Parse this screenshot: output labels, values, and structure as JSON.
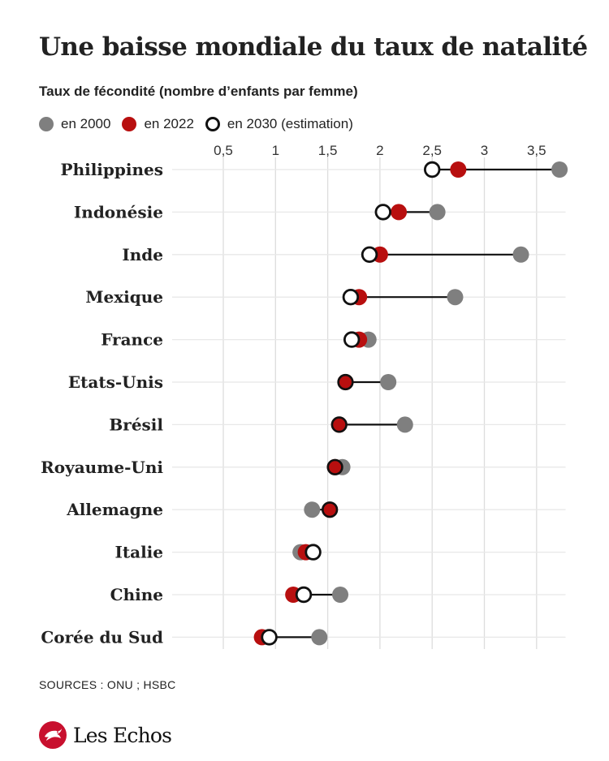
{
  "title": "Une baisse mondiale du taux de natalité",
  "subtitle": "Taux de fécondité (nombre d’enfants par femme)",
  "legend": [
    {
      "label": "en 2000",
      "style": "grey"
    },
    {
      "label": "en 2022",
      "style": "red"
    },
    {
      "label": "en 2030 (estimation)",
      "style": "open"
    }
  ],
  "colors": {
    "y2000": "#7f7f7f",
    "y2022": "#b80f0f",
    "y2030_stroke": "#111111",
    "line": "#111111",
    "grid": "#dddddd"
  },
  "sources": "SOURCES : ONU ; HSBC",
  "brand": "Les Echos",
  "chart_data": {
    "type": "dot-plot",
    "title": "Une baisse mondiale du taux de natalité",
    "xlabel": "Taux de fécondité (nombre d’enfants par femme)",
    "xlim": [
      0.5,
      3.7
    ],
    "ticks": [
      0.5,
      1,
      1.5,
      2,
      2.5,
      3,
      3.5
    ],
    "tick_labels": [
      "0,5",
      "1",
      "1,5",
      "2",
      "2,5",
      "3",
      "3,5"
    ],
    "countries": [
      {
        "name": "Philippines",
        "y2000": 3.72,
        "y2022": 2.75,
        "y2030": 2.5
      },
      {
        "name": "Indonésie",
        "y2000": 2.55,
        "y2022": 2.18,
        "y2030": 2.03
      },
      {
        "name": "Inde",
        "y2000": 3.35,
        "y2022": 2.0,
        "y2030": 1.9
      },
      {
        "name": "Mexique",
        "y2000": 2.72,
        "y2022": 1.8,
        "y2030": 1.72
      },
      {
        "name": "France",
        "y2000": 1.89,
        "y2022": 1.8,
        "y2030": 1.73
      },
      {
        "name": "Etats-Unis",
        "y2000": 2.08,
        "y2022": 1.67,
        "y2030": 1.67
      },
      {
        "name": "Brésil",
        "y2000": 2.24,
        "y2022": 1.61,
        "y2030": 1.61
      },
      {
        "name": "Royaume-Uni",
        "y2000": 1.64,
        "y2022": 1.57,
        "y2030": 1.57
      },
      {
        "name": "Allemagne",
        "y2000": 1.35,
        "y2022": 1.52,
        "y2030": 1.52
      },
      {
        "name": "Italie",
        "y2000": 1.24,
        "y2022": 1.29,
        "y2030": 1.36
      },
      {
        "name": "Chine",
        "y2000": 1.62,
        "y2022": 1.17,
        "y2030": 1.27
      },
      {
        "name": "Corée du Sud",
        "y2000": 1.42,
        "y2022": 0.87,
        "y2030": 0.94
      }
    ]
  }
}
